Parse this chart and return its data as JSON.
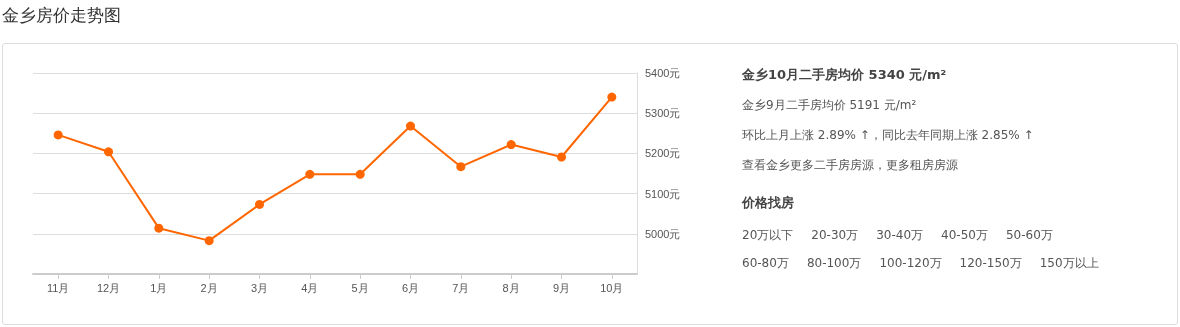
{
  "chart_data": {
    "type": "line",
    "title": "金乡房价走势图",
    "categories": [
      "11月",
      "12月",
      "1月",
      "2月",
      "3月",
      "4月",
      "5月",
      "6月",
      "7月",
      "8月",
      "9月",
      "10月"
    ],
    "series": [
      {
        "color": "#ff6600",
        "values": [
          5246,
          5204,
          5014,
          4983,
          5073,
          5148,
          5148,
          5268,
          5167,
          5222,
          5191,
          5340
        ]
      }
    ],
    "ylim": [
      4900,
      5400
    ],
    "yticks": [
      {
        "value": 5000,
        "label": "5000元"
      },
      {
        "value": 5100,
        "label": "5100元"
      },
      {
        "value": 5200,
        "label": "5200元"
      },
      {
        "value": 5300,
        "label": "5300元"
      },
      {
        "value": 5400,
        "label": "5400元"
      }
    ],
    "grid": "y",
    "marker": "circle",
    "line_style": "solid",
    "annotations": [
      "金乡10月二手房均价 5340 元/m²",
      "金乡9月二手房均价 5191 元/m²",
      "环比上月上涨 2.89% ↑，同比去年同期上涨 2.85% ↑",
      "查看金乡更多二手房房源，更多租房房源",
      "价格找房",
      "20万以下",
      "20-30万",
      "30-40万",
      "40-50万",
      "50-60万",
      "60-80万",
      "80-100万",
      "100-120万",
      "120-150万",
      "150万以上"
    ]
  }
}
